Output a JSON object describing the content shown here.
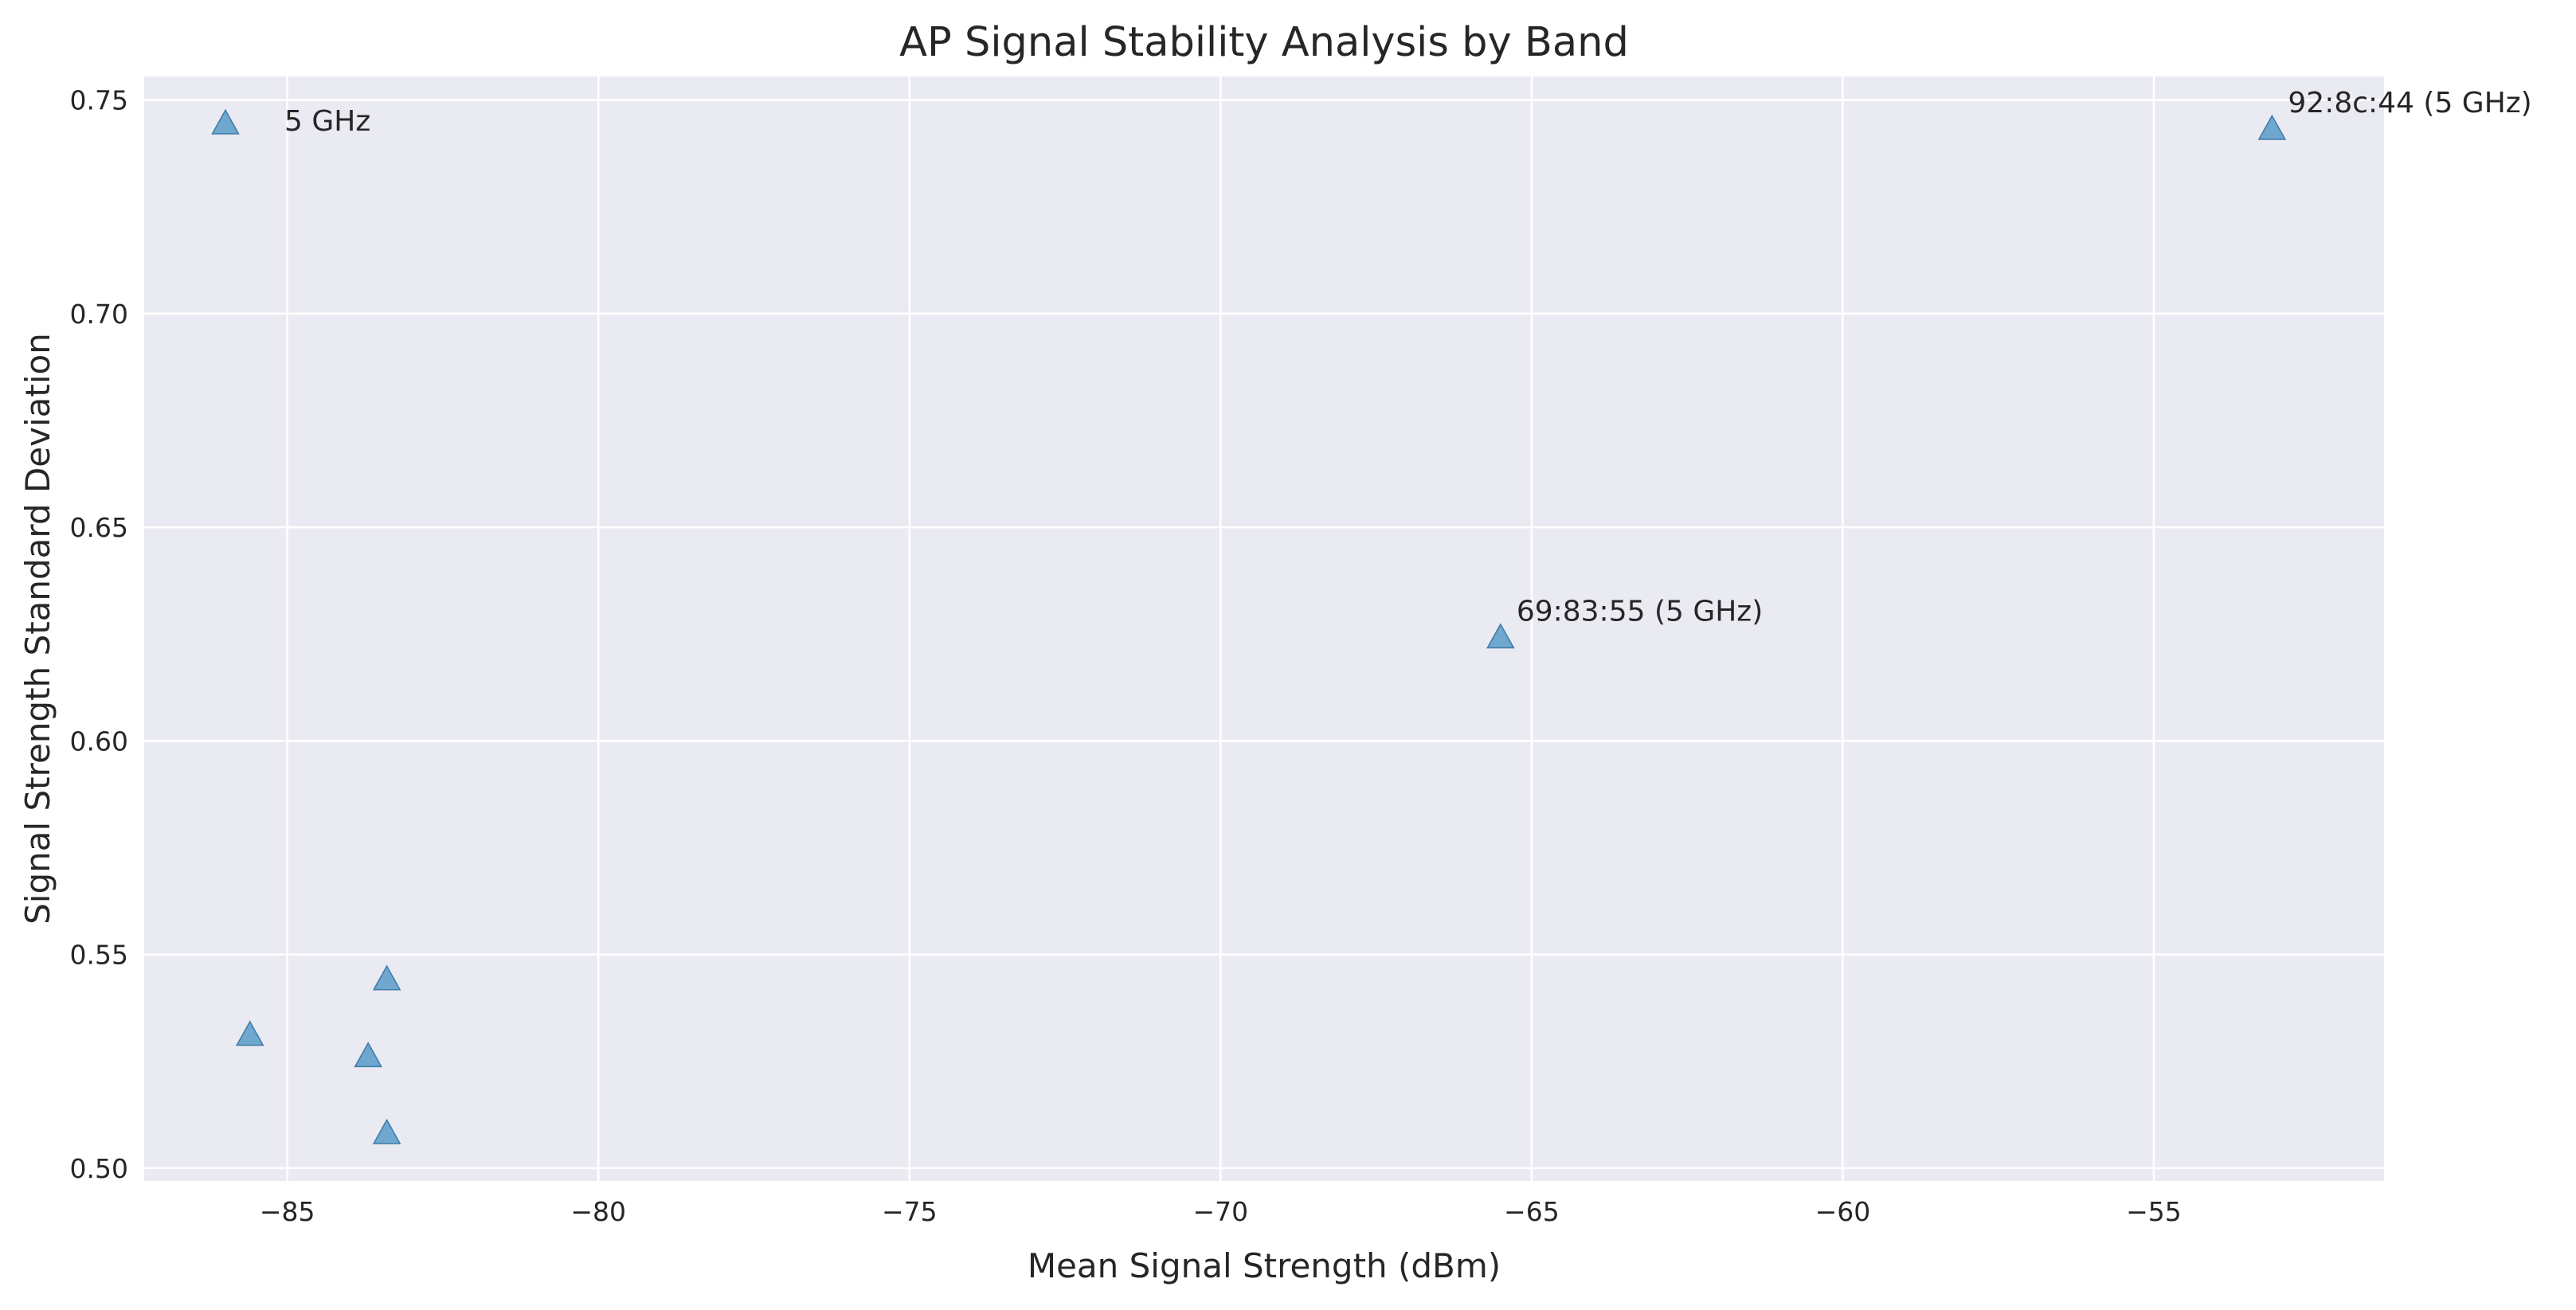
{
  "chart_data": {
    "type": "scatter",
    "title": "AP Signal Stability Analysis by Band",
    "xlabel": "Mean Signal Strength (dBm)",
    "ylabel": "Signal Strength Standard Deviation",
    "xlim": [
      -87.3,
      -51.3
    ],
    "ylim": [
      0.497,
      0.7555
    ],
    "x_ticks": [
      -85,
      -80,
      -75,
      -70,
      -65,
      -60,
      -55
    ],
    "x_tick_labels": [
      "−85",
      "−80",
      "−75",
      "−70",
      "−65",
      "−60",
      "−55"
    ],
    "y_ticks": [
      0.5,
      0.55,
      0.6,
      0.65,
      0.7,
      0.75
    ],
    "y_tick_labels": [
      "0.50",
      "0.55",
      "0.60",
      "0.65",
      "0.70",
      "0.75"
    ],
    "grid": true,
    "legend_position": "top-left",
    "series": [
      {
        "name": "5 GHz",
        "marker": "triangle",
        "color": "#5b9bc8",
        "points": [
          {
            "x": -85.6,
            "y": 0.531
          },
          {
            "x": -83.7,
            "y": 0.526
          },
          {
            "x": -83.4,
            "y": 0.544
          },
          {
            "x": -83.4,
            "y": 0.508
          },
          {
            "x": -65.5,
            "y": 0.624
          },
          {
            "x": -53.1,
            "y": 0.743
          }
        ]
      }
    ],
    "annotations": [
      {
        "text": "69:83:55 (5 GHz)",
        "x": -65.5,
        "y": 0.624
      },
      {
        "text": "92:8c:44 (5 GHz)",
        "x": -53.1,
        "y": 0.743
      }
    ]
  },
  "colors": {
    "plot_background": "#eaeaf2",
    "grid": "#ffffff",
    "marker_fill": "#5b9bc8",
    "marker_edge": "#3d7aa8",
    "text": "#262626"
  }
}
